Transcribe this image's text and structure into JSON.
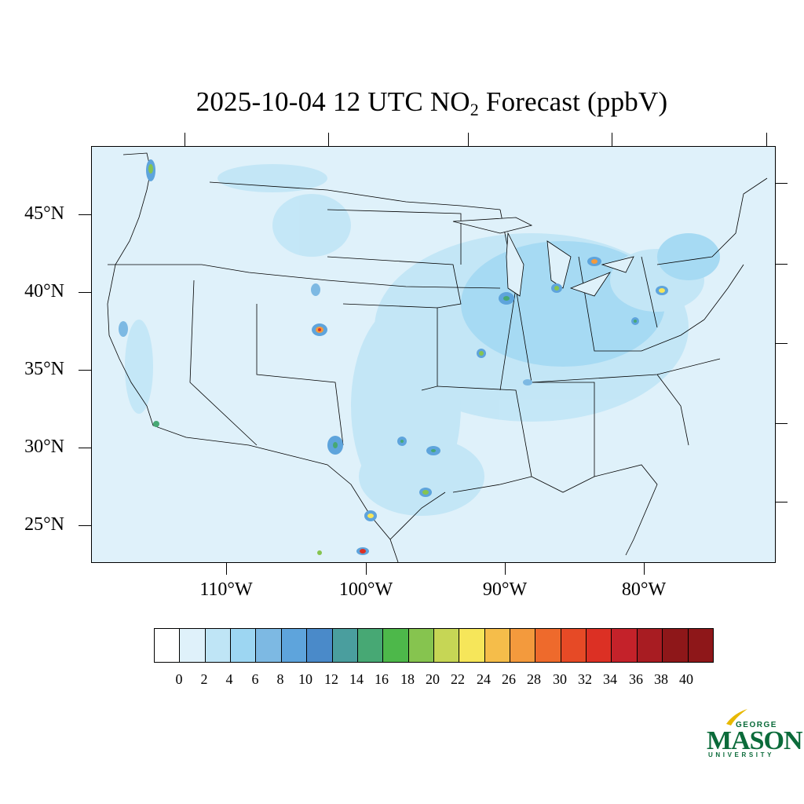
{
  "title": {
    "prefix": "2025-10-04 12 UTC NO",
    "subscript": "2",
    "suffix": " Forecast (ppbV)"
  },
  "map": {
    "region": "Contiguous United States",
    "background_color": "#dff1fa",
    "hotspot_color_scale": [
      "#bfe5f6",
      "#9dd6f2",
      "#7db9e3",
      "#5ea4dc",
      "#4a8ac9",
      "#4a9e9e",
      "#47a874",
      "#4db84a",
      "#86c44f",
      "#c6d655",
      "#f6e65a",
      "#f5bd4a",
      "#f39a3d",
      "#ee6a2c",
      "#e64a26",
      "#dc3024",
      "#c4222a",
      "#a81c22"
    ]
  },
  "axes": {
    "lat_labels": [
      "45°N",
      "40°N",
      "35°N",
      "30°N",
      "25°N"
    ],
    "lon_labels": [
      "110°W",
      "100°W",
      "90°W",
      "80°W"
    ]
  },
  "colorbar": {
    "labels": [
      "0",
      "2",
      "4",
      "6",
      "8",
      "10",
      "12",
      "14",
      "16",
      "18",
      "20",
      "22",
      "24",
      "26",
      "28",
      "30",
      "32",
      "34",
      "36",
      "38",
      "40"
    ],
    "colors": [
      "#ffffff",
      "#dff1fa",
      "#bfe5f6",
      "#9dd6f2",
      "#7db9e3",
      "#5ea4dc",
      "#4a8ac9",
      "#4a9e9e",
      "#47a874",
      "#4db84a",
      "#86c44f",
      "#c6d655",
      "#f6e65a",
      "#f5bd4a",
      "#f39a3d",
      "#ee6a2c",
      "#e64a26",
      "#dc3024",
      "#c4222a",
      "#a81c22",
      "#8e1719"
    ]
  },
  "logo": {
    "top": "GEORGE",
    "main": "MASON",
    "bottom": "UNIVERSITY",
    "color": "#0b6b3a",
    "accent_color": "#e8b800"
  }
}
